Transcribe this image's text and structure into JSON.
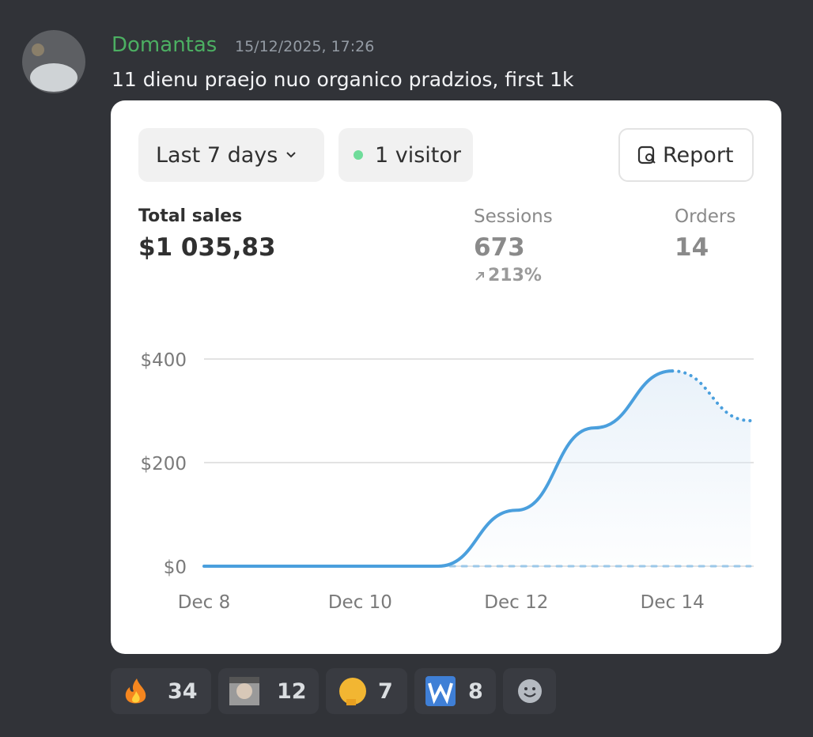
{
  "message": {
    "author": "Domantas",
    "timestamp": "15/12/2025, 17:26",
    "text": "11 dienu praejo nuo organico pradzios, first 1k"
  },
  "card": {
    "range_button": "Last 7 days",
    "visitors": "1 visitor",
    "report_button": "Report",
    "metrics": [
      {
        "label": "Total sales",
        "value": "$1 035,83"
      },
      {
        "label": "Sessions",
        "value": "673",
        "change": "213%"
      },
      {
        "label": "Orders",
        "value": "14"
      }
    ]
  },
  "chart_data": {
    "type": "line",
    "categories": [
      "Dec 8",
      null,
      "Dec 10",
      null,
      "Dec 12",
      null,
      "Dec 14",
      null
    ],
    "series": [
      {
        "color": "#4a9fdd",
        "values": [
          0,
          0,
          0,
          0,
          108,
          267,
          377,
          281
        ],
        "dotted_last_segment": true
      },
      {
        "color": "#9cc8e8",
        "values": [
          null,
          null,
          null,
          0,
          0,
          0,
          0,
          0
        ],
        "dashed": true
      }
    ],
    "ylim": [
      0,
      400
    ],
    "yticks": [
      {
        "value": 0,
        "label": "$0"
      },
      {
        "value": 200,
        "label": "$200"
      },
      {
        "value": 400,
        "label": "$400"
      }
    ],
    "grid": true
  },
  "reactions": [
    {
      "count": 34
    },
    {
      "count": 12
    },
    {
      "count": 7
    },
    {
      "count": 8
    }
  ]
}
